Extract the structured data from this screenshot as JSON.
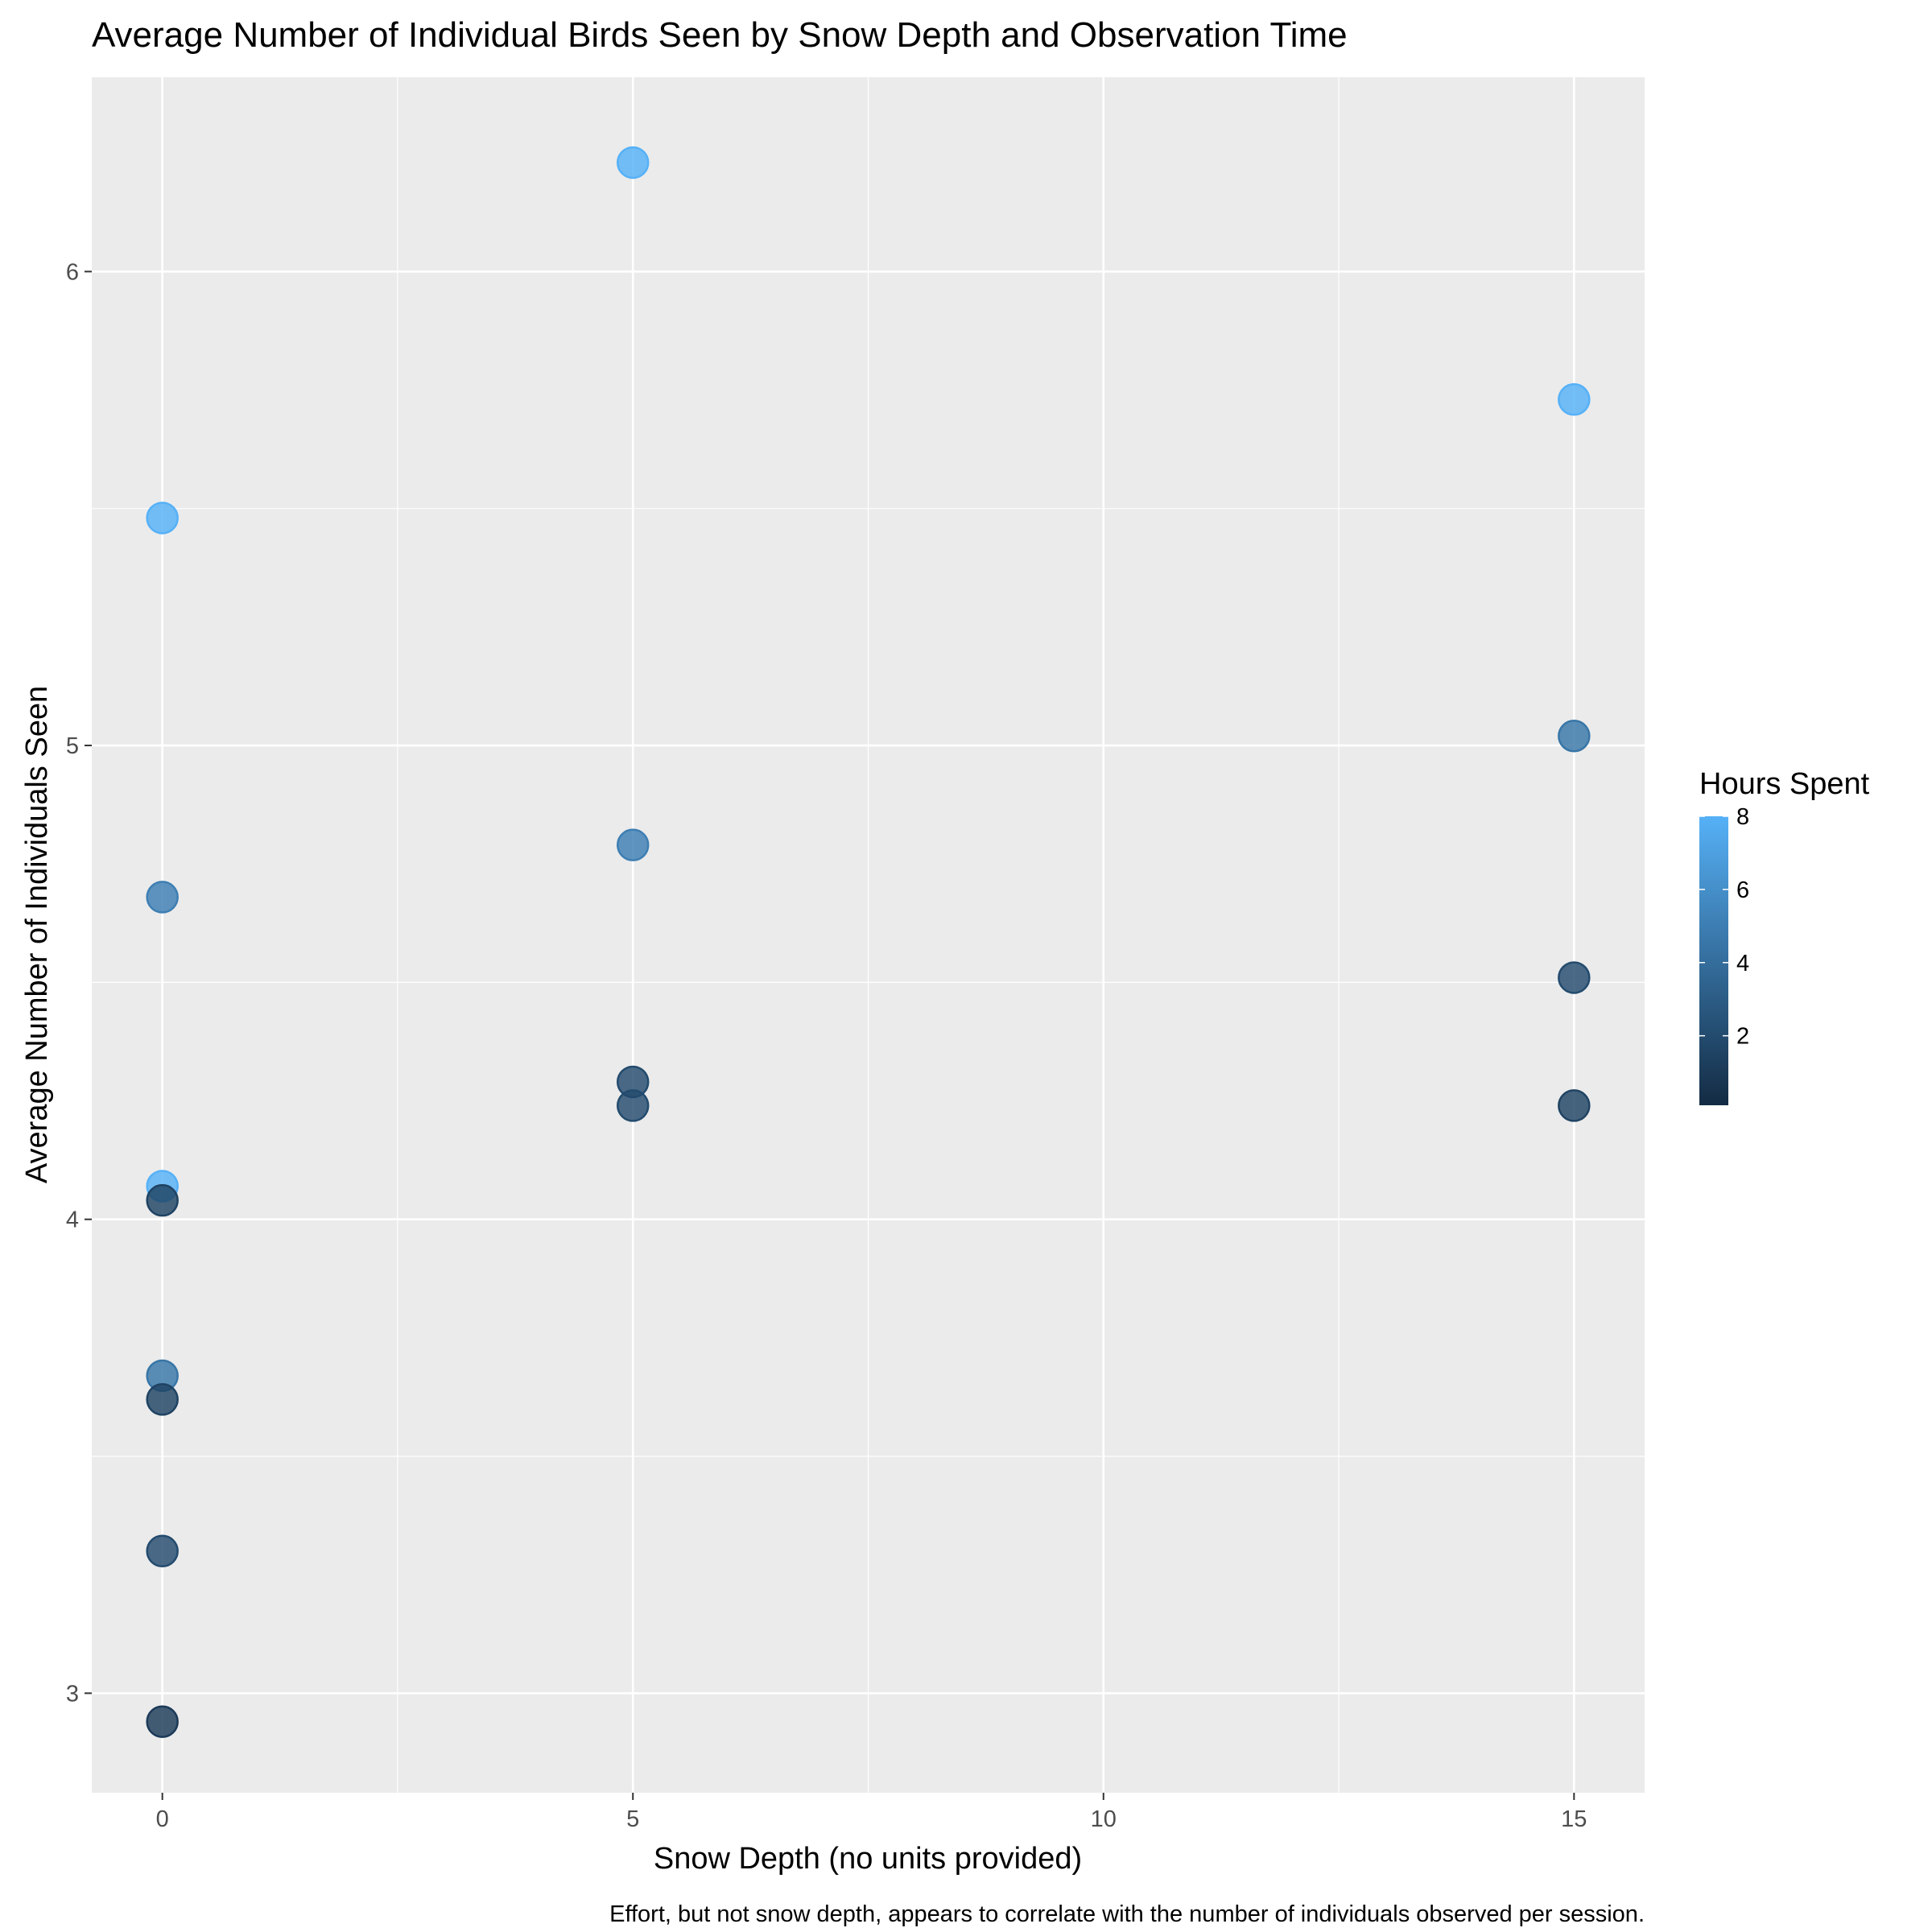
{
  "chart_data": {
    "type": "scatter",
    "title": "Average Number of Individual Birds Seen by Snow Depth and Observation Time",
    "xlabel": "Snow Depth (no units provided)",
    "ylabel": "Average Number of Individuals Seen",
    "caption": "Effort, but not snow depth, appears to correlate with the number of individuals observed per session.",
    "xlim": [
      -0.75,
      15.75
    ],
    "ylim": [
      2.79,
      6.41
    ],
    "x_ticks": [
      0,
      5,
      10,
      15
    ],
    "x_tick_labels": [
      "0",
      "5",
      "10",
      "15"
    ],
    "y_ticks": [
      3,
      4,
      5,
      6
    ],
    "y_tick_labels": [
      "3",
      "4",
      "5",
      "6"
    ],
    "grid": true,
    "legend": {
      "title": "Hours Spent",
      "position": "right",
      "range": [
        0.1,
        8
      ],
      "ticks": [
        2,
        4,
        6,
        8
      ],
      "tick_labels": [
        "2",
        "4",
        "6",
        "8"
      ],
      "low_color": "#132B43",
      "high_color": "#56B1F7"
    },
    "colors": {
      "panel_background": "#EBEBEB",
      "grid": "#FFFFFF",
      "axis_text": "#4D4D4D",
      "point_low": "#132B43",
      "point_high": "#56B1F7"
    },
    "points": [
      {
        "x": 0,
        "y": 5.48,
        "hours": 8
      },
      {
        "x": 0,
        "y": 4.68,
        "hours": 5
      },
      {
        "x": 0,
        "y": 4.07,
        "hours": 8
      },
      {
        "x": 0,
        "y": 4.04,
        "hours": 1.5
      },
      {
        "x": 0,
        "y": 3.67,
        "hours": 4.5
      },
      {
        "x": 0,
        "y": 3.62,
        "hours": 1.5
      },
      {
        "x": 0,
        "y": 3.3,
        "hours": 2
      },
      {
        "x": 0,
        "y": 2.94,
        "hours": 1
      },
      {
        "x": 5,
        "y": 6.23,
        "hours": 8
      },
      {
        "x": 5,
        "y": 4.79,
        "hours": 5
      },
      {
        "x": 5,
        "y": 4.29,
        "hours": 2
      },
      {
        "x": 5,
        "y": 4.24,
        "hours": 2
      },
      {
        "x": 15,
        "y": 5.73,
        "hours": 8
      },
      {
        "x": 15,
        "y": 5.02,
        "hours": 4.5
      },
      {
        "x": 15,
        "y": 4.51,
        "hours": 2
      },
      {
        "x": 15,
        "y": 4.24,
        "hours": 1.5
      }
    ]
  }
}
